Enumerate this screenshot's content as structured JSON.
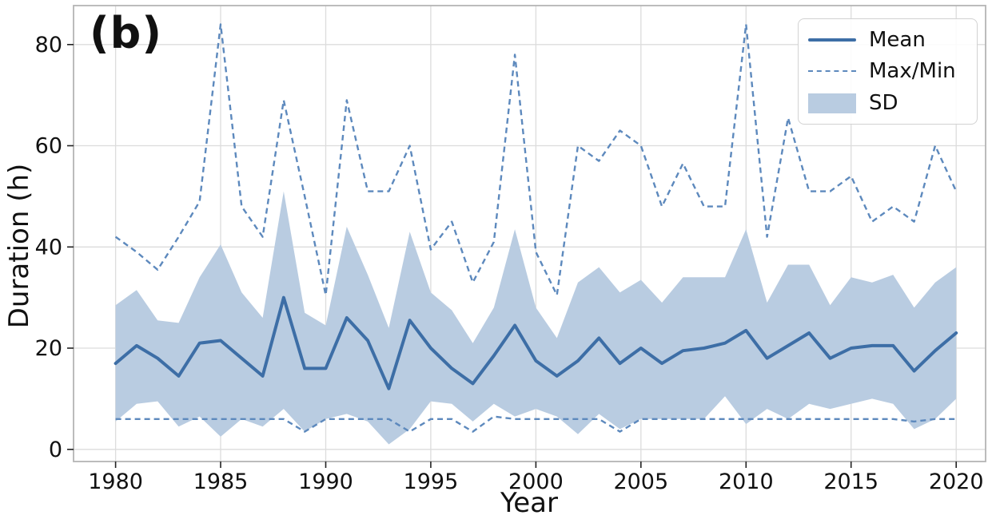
{
  "figure": {
    "panel_label": "(b)",
    "xlabel": "Year",
    "ylabel": "Duration (h)"
  },
  "legend": {
    "position": "upper-right",
    "items": [
      {
        "label": "Mean",
        "swatch": "solid-line"
      },
      {
        "label": "Max/Min",
        "swatch": "dashed-line"
      },
      {
        "label": "SD",
        "swatch": "filled-band"
      }
    ]
  },
  "chart_data": {
    "type": "line",
    "title": "",
    "panel_label": "(b)",
    "xlabel": "Year",
    "ylabel": "Duration (h)",
    "x": [
      1980,
      1981,
      1982,
      1983,
      1984,
      1985,
      1986,
      1987,
      1988,
      1989,
      1990,
      1991,
      1992,
      1993,
      1994,
      1995,
      1996,
      1997,
      1998,
      1999,
      2000,
      2001,
      2002,
      2003,
      2004,
      2005,
      2006,
      2007,
      2008,
      2009,
      2010,
      2011,
      2012,
      2013,
      2014,
      2015,
      2016,
      2017,
      2018,
      2019,
      2020
    ],
    "series": [
      {
        "name": "Mean",
        "style": "solid",
        "color": "#3d6ea6",
        "values": [
          17,
          20.5,
          18,
          14.5,
          21,
          21.5,
          18,
          14.5,
          30,
          16,
          16,
          26,
          21.5,
          12,
          25.5,
          20,
          16,
          13,
          18.5,
          24.5,
          17.5,
          14.5,
          17.5,
          22,
          17,
          20,
          17,
          19.5,
          20,
          21,
          23.5,
          18,
          20.5,
          23,
          18,
          20,
          20.5,
          20.5,
          15.5,
          19.5,
          23
        ]
      },
      {
        "name": "Max",
        "style": "dashed",
        "color": "#5d89bd",
        "values": [
          42,
          39,
          35.5,
          42,
          49,
          84,
          48,
          42,
          69,
          50,
          30.5,
          69,
          51,
          51,
          60,
          39.5,
          45,
          33,
          41,
          78,
          39,
          30.5,
          60,
          57,
          63,
          60,
          48,
          56.5,
          48,
          48,
          84,
          42,
          65.5,
          51,
          51,
          54,
          45,
          48,
          45,
          60,
          51
        ]
      },
      {
        "name": "Min",
        "style": "dashed",
        "color": "#5d89bd",
        "values": [
          6,
          6,
          6,
          6,
          6,
          6,
          6,
          6,
          6,
          3.5,
          6,
          6,
          6,
          6,
          3.5,
          6,
          6,
          3.5,
          6.5,
          6,
          6,
          6,
          6,
          6,
          3.5,
          6,
          6,
          6,
          6,
          6,
          6,
          6,
          6,
          6,
          6,
          6,
          6,
          6,
          5.5,
          6,
          6
        ]
      }
    ],
    "band": {
      "name": "SD",
      "color": "#b9cce1",
      "upper": [
        28.5,
        31.5,
        25.5,
        25,
        34,
        40.5,
        31,
        26,
        51,
        27,
        24.5,
        44,
        34.5,
        24,
        43,
        31,
        27.5,
        21,
        28,
        43.5,
        28,
        22,
        33,
        36,
        31,
        33.5,
        29,
        34,
        34,
        34,
        43.5,
        29,
        36.5,
        36.5,
        28.5,
        34,
        33,
        34.5,
        28,
        33,
        36
      ],
      "lower": [
        5.5,
        9,
        9.5,
        4.5,
        6.5,
        2.5,
        6,
        4.5,
        8,
        3.5,
        6,
        7,
        5.5,
        1,
        4,
        9.5,
        9,
        5.5,
        9,
        6.5,
        8,
        6.5,
        3,
        7,
        4,
        6,
        6,
        6,
        6,
        10.5,
        5,
        8,
        6,
        9,
        8,
        9,
        10,
        9,
        4,
        6,
        10
      ]
    },
    "xticks": [
      1980,
      1985,
      1990,
      1995,
      2000,
      2005,
      2010,
      2015,
      2020
    ],
    "yticks": [
      0,
      20,
      40,
      60,
      80
    ],
    "xlim": [
      1978.0,
      2021.4
    ],
    "ylim": [
      -2.4,
      87.7
    ],
    "grid": true,
    "gridcolor": "#dcdcdc",
    "spinecolor": "#b5b5b5",
    "textcolor": "#111111",
    "tick_fontsize": 27,
    "legend_position": "upper right"
  }
}
